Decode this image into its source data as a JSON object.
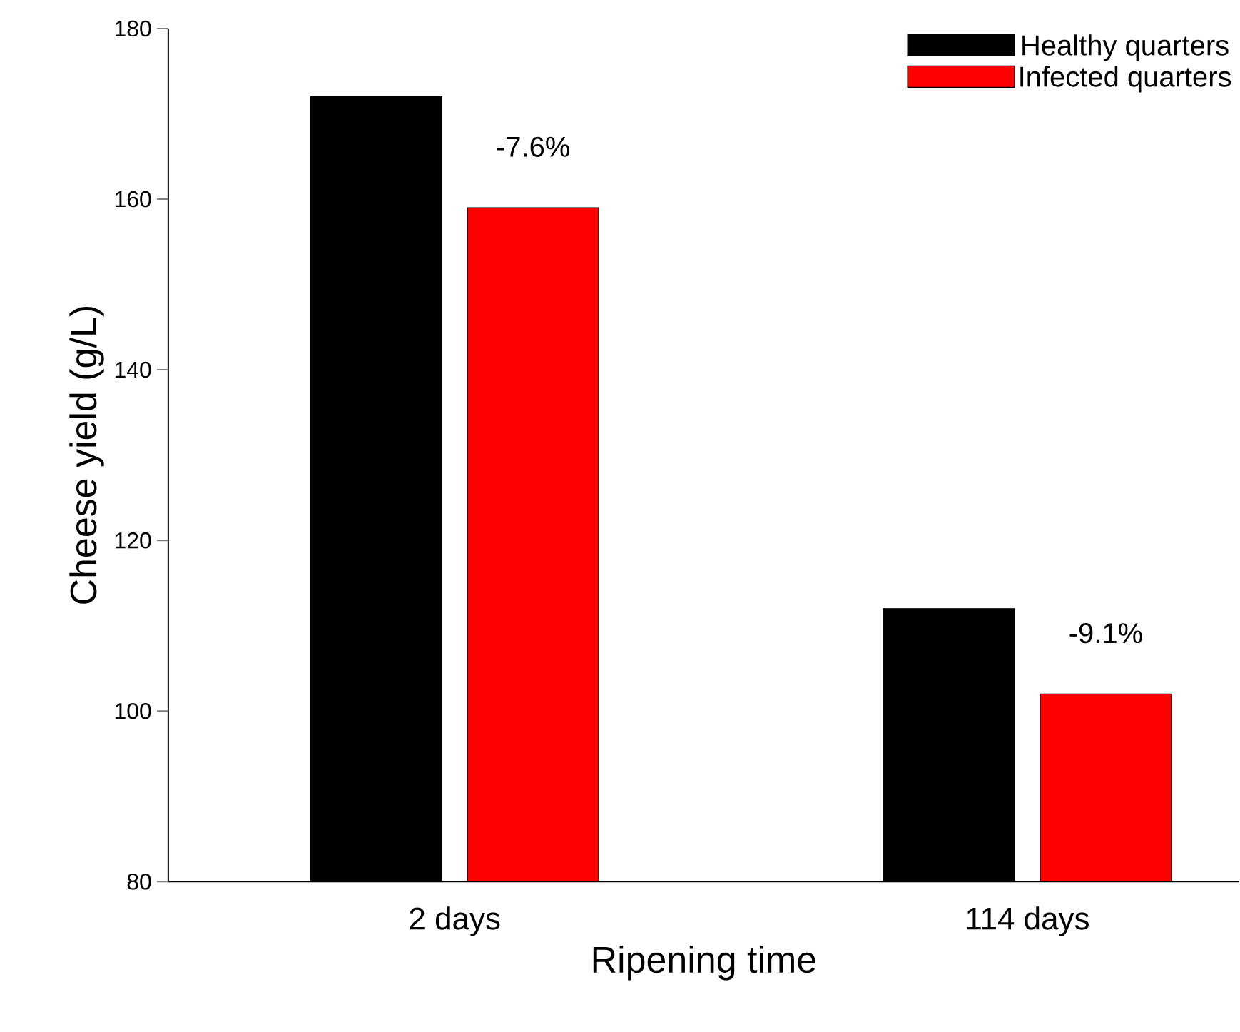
{
  "chart_data": {
    "type": "bar",
    "xlabel": "Ripening time",
    "ylabel": "Cheese yield (g/L)",
    "categories": [
      "2 days",
      "114 days"
    ],
    "series": [
      {
        "name": "Healthy quarters",
        "color": "#000000",
        "values": [
          172,
          112
        ]
      },
      {
        "name": "Infected quarters",
        "color": "#ff0000",
        "values": [
          159,
          102
        ]
      }
    ],
    "ylim": [
      80,
      180
    ],
    "yticks": [
      80,
      100,
      120,
      140,
      160,
      180
    ],
    "legend": "top right",
    "annotations": [
      "-7.6%",
      "-9.1%"
    ]
  }
}
